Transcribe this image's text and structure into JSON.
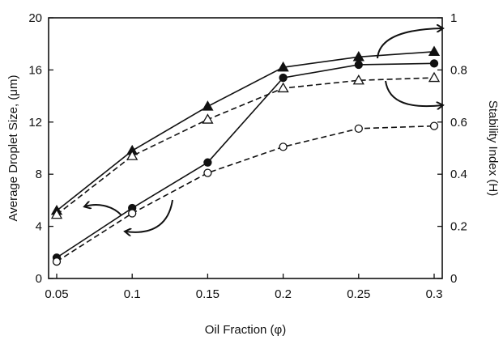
{
  "chart_data": {
    "type": "line",
    "title": "",
    "xlabel": "Oil Fraction (φ)",
    "ylabel_left": "Average Droplet Size, (μm)",
    "ylabel_right": "Stability Index (H)",
    "x": [
      0.05,
      0.1,
      0.15,
      0.2,
      0.25,
      0.3
    ],
    "x_ticks": [
      "0.05",
      "0.1",
      "0.15",
      "0.2",
      "0.25",
      "0.3"
    ],
    "y_left_ticks": [
      "0",
      "4",
      "8",
      "12",
      "16",
      "20"
    ],
    "y_right_ticks": [
      "0",
      "0.2",
      "0.4",
      "0.6",
      "0.8",
      "1"
    ],
    "ylim_left": [
      0,
      20
    ],
    "ylim_right": [
      0,
      1
    ],
    "grid": false,
    "legend": "none",
    "series": [
      {
        "marker": "filled-triangle",
        "line": "solid",
        "axis": "right",
        "values": [
          0.26,
          0.49,
          0.66,
          0.81,
          0.85,
          0.87
        ]
      },
      {
        "marker": "open-triangle",
        "line": "dashed",
        "axis": "right",
        "values": [
          0.245,
          0.47,
          0.61,
          0.73,
          0.76,
          0.77
        ]
      },
      {
        "marker": "filled-circle",
        "line": "solid",
        "axis": "left",
        "values": [
          1.6,
          5.4,
          8.9,
          15.4,
          16.4,
          16.5
        ]
      },
      {
        "marker": "open-circle",
        "line": "dashed",
        "axis": "left",
        "values": [
          1.3,
          5.0,
          8.1,
          10.1,
          11.5,
          11.7
        ]
      }
    ],
    "annotations": [
      {
        "type": "curved-arrow",
        "meaning": "lower curves refer to left axis",
        "points_to": "left"
      },
      {
        "type": "curved-arrow",
        "meaning": "upper-left curve to left axis",
        "points_to": "left"
      },
      {
        "type": "curved-arrow",
        "meaning": "upper curves refer to right axis",
        "points_to": "right"
      },
      {
        "type": "curved-arrow",
        "meaning": "upper-right curve to right axis",
        "points_to": "right"
      }
    ]
  }
}
